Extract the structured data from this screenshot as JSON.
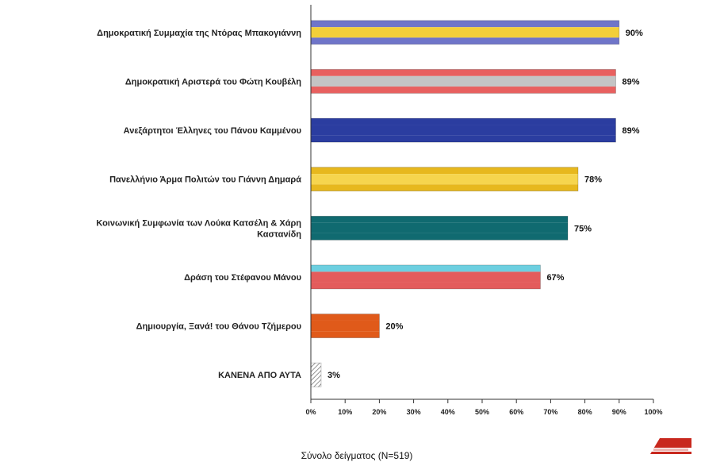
{
  "chart_data": {
    "type": "bar",
    "orientation": "horizontal",
    "categories": [
      "Δημοκρατική Συμμαχία της Ντόρας Μπακογιάννη",
      "Δημοκρατική Αριστερά του Φώτη Κουβέλη",
      "Ανεξάρτητοι Έλληνες του Πάνου Καμμένου",
      "Πανελλήνιο Άρμα Πολιτών του Γιάννη Δημαρά",
      "Κοινωνική Συμφωνία των Λούκα Κατσέλη & Χάρη Καστανίδη",
      "Δράση του Στέφανου Μάνου",
      "Δημιουργία, Ξανά! του Θάνου Τζήμερου",
      "ΚΑΝΕΝΑ ΑΠΟ ΑΥΤΑ"
    ],
    "values": [
      90,
      89,
      89,
      78,
      75,
      67,
      20,
      3
    ],
    "value_labels": [
      "90%",
      "89%",
      "89%",
      "78%",
      "75%",
      "67%",
      "20%",
      "3%"
    ],
    "bar_colors": [
      [
        "#6f75c9",
        "#f2cf3a",
        "#6f75c9"
      ],
      [
        "#e8605f",
        "#c4c4c4",
        "#e8605f"
      ],
      [
        "#2b3da0",
        "#2b3da0",
        "#2b3da0"
      ],
      [
        "#e7b81e",
        "#f6d54e",
        "#e7b81e"
      ],
      [
        "#106a70",
        "#106a70",
        "#106a70"
      ],
      [
        "#6ccfe0",
        "#e35c5c",
        "#e35c5c"
      ],
      [
        "#e05a1a",
        "#e05a1a",
        "#e05a1a"
      ],
      [
        "hatch",
        "hatch",
        "hatch"
      ]
    ],
    "xlim": [
      0,
      100
    ],
    "x_ticks": [
      "0%",
      "10%",
      "20%",
      "30%",
      "40%",
      "50%",
      "60%",
      "70%",
      "80%",
      "90%",
      "100%"
    ],
    "xlabel": "Σύνολο δείγματος (N=519)",
    "grid": false,
    "legend": "none"
  }
}
